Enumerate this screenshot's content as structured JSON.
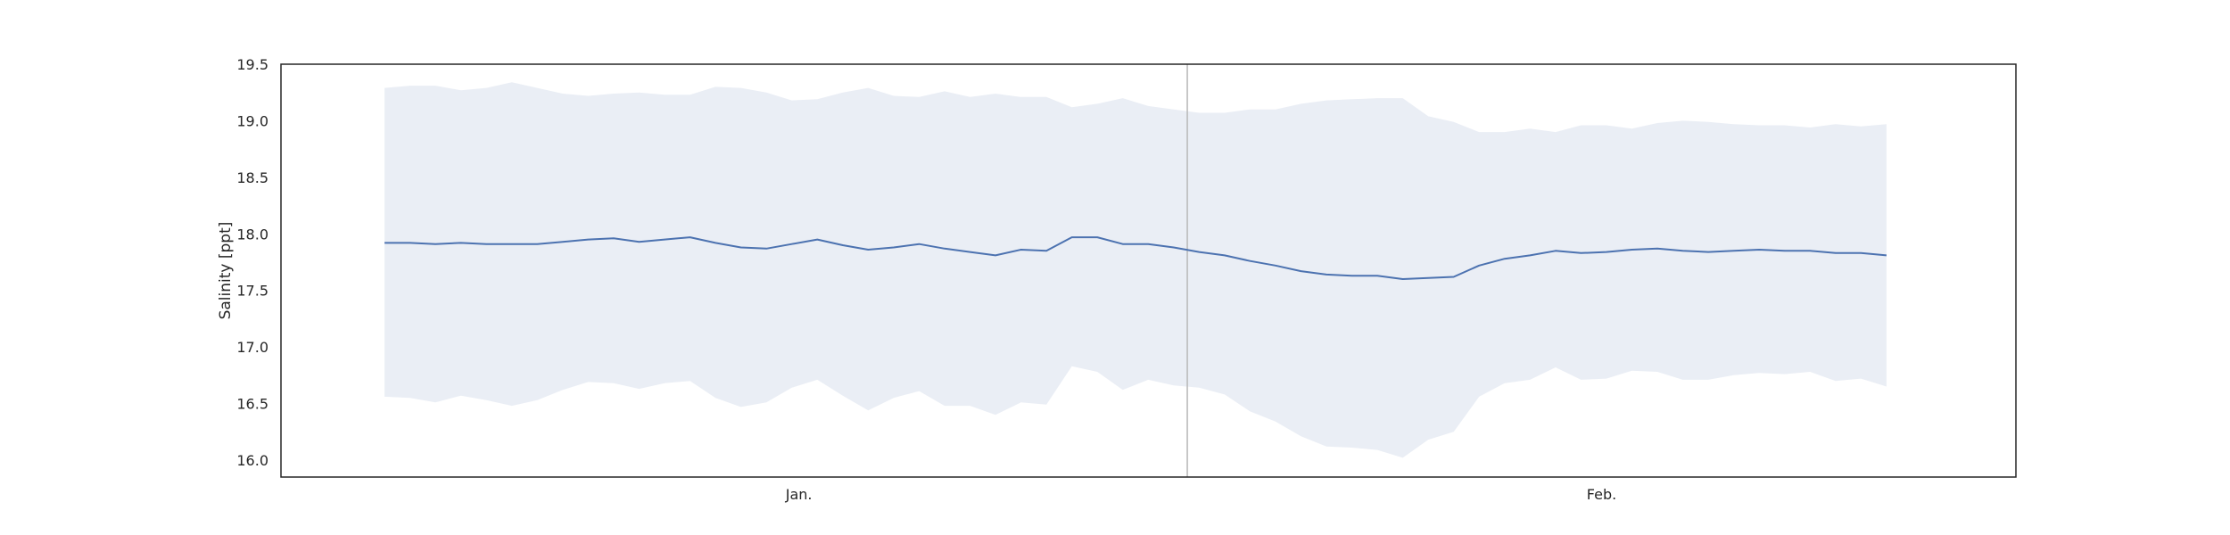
{
  "chart_data": {
    "type": "line",
    "title": "",
    "xlabel": "",
    "ylabel": "Salinity [ppt]",
    "ylim": [
      15.85,
      19.5
    ],
    "yticks": [
      16.0,
      16.5,
      17.0,
      17.5,
      18.0,
      18.5,
      19.0,
      19.5
    ],
    "ytick_labels": [
      "16.0",
      "16.5",
      "17.0",
      "17.5",
      "18.0",
      "18.5",
      "19.0",
      "19.5"
    ],
    "x_start": "2024-01-01",
    "x_end": "2024-02-28",
    "xlim": [
      "2023-12-28",
      "2024-03-04"
    ],
    "xticks": [
      {
        "date": "2024-01-17",
        "label": "Jan."
      },
      {
        "date": "2024-02-17",
        "label": "Feb."
      }
    ],
    "vline": "2024-02-01",
    "grid": false,
    "legend": "none",
    "colors": {
      "line": "#4c72b0",
      "band": "#eaeef5",
      "vline": "#b8b8b8",
      "frame": "#262626"
    },
    "series": [
      {
        "type": "line",
        "values": [
          17.92,
          17.92,
          17.91,
          17.92,
          17.91,
          17.91,
          17.91,
          17.93,
          17.95,
          17.96,
          17.93,
          17.95,
          17.97,
          17.92,
          17.88,
          17.87,
          17.91,
          17.95,
          17.9,
          17.86,
          17.88,
          17.91,
          17.87,
          17.84,
          17.81,
          17.86,
          17.85,
          17.97,
          17.97,
          17.91,
          17.91,
          17.88,
          17.84,
          17.81,
          17.76,
          17.72,
          17.67,
          17.64,
          17.63,
          17.63,
          17.6,
          17.61,
          17.62,
          17.72,
          17.78,
          17.81,
          17.85,
          17.83,
          17.84,
          17.86,
          17.87,
          17.85,
          17.84,
          17.85,
          17.86,
          17.85,
          17.85,
          17.83,
          17.83,
          17.81
        ]
      },
      {
        "type": "band",
        "upper": [
          19.29,
          19.31,
          19.31,
          19.27,
          19.29,
          19.34,
          19.29,
          19.24,
          19.22,
          19.24,
          19.25,
          19.23,
          19.23,
          19.3,
          19.29,
          19.25,
          19.18,
          19.19,
          19.25,
          19.29,
          19.22,
          19.21,
          19.26,
          19.21,
          19.24,
          19.21,
          19.21,
          19.12,
          19.15,
          19.2,
          19.13,
          19.1,
          19.07,
          19.07,
          19.1,
          19.1,
          19.15,
          19.18,
          19.19,
          19.2,
          19.2,
          19.04,
          18.99,
          18.9,
          18.9,
          18.93,
          18.9,
          18.96,
          18.96,
          18.93,
          18.98,
          19.0,
          18.99,
          18.97,
          18.96,
          18.96,
          18.94,
          18.97,
          18.95,
          18.97
        ],
        "lower": [
          16.56,
          16.55,
          16.51,
          16.57,
          16.53,
          16.48,
          16.53,
          16.62,
          16.69,
          16.68,
          16.63,
          16.68,
          16.7,
          16.55,
          16.47,
          16.51,
          16.64,
          16.71,
          16.57,
          16.44,
          16.55,
          16.61,
          16.48,
          16.48,
          16.4,
          16.51,
          16.49,
          16.83,
          16.78,
          16.62,
          16.71,
          16.66,
          16.64,
          16.58,
          16.43,
          16.34,
          16.21,
          16.12,
          16.11,
          16.09,
          16.02,
          16.18,
          16.25,
          16.56,
          16.68,
          16.71,
          16.82,
          16.71,
          16.72,
          16.79,
          16.78,
          16.71,
          16.71,
          16.75,
          16.77,
          16.76,
          16.78,
          16.7,
          16.72,
          16.65
        ]
      }
    ]
  }
}
